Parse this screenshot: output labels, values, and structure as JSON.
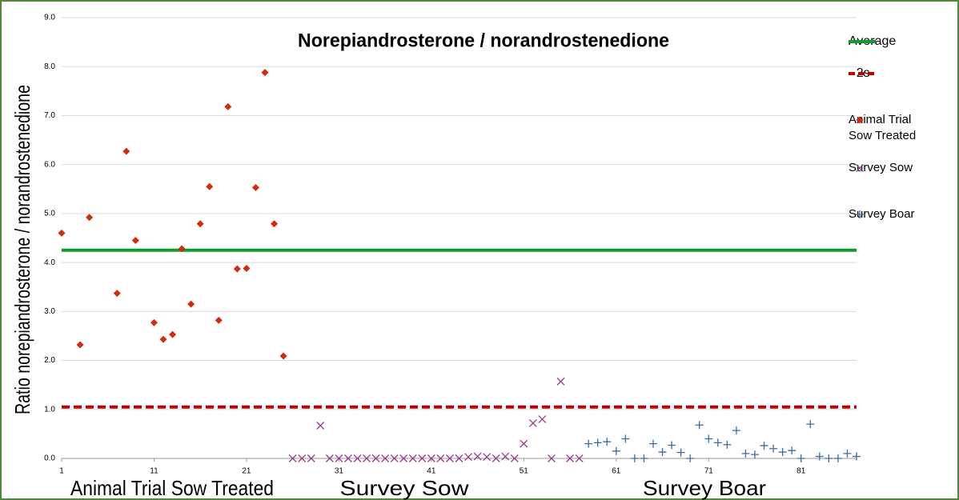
{
  "chart_data": {
    "type": "scatter",
    "title": "Norepiandrosterone / norandrostenedione",
    "y_label": "Ratio norepiandrosterone / norandrostenedione",
    "annotations": [
      "Animal Trial Sow Treated",
      "Survey Sow",
      "Survey Boar"
    ],
    "xlim": [
      1,
      87
    ],
    "xticks": [
      1,
      11,
      21,
      31,
      41,
      51,
      61,
      71,
      81
    ],
    "ylim": [
      0,
      9
    ],
    "yticks": [
      {
        "value": 0,
        "label": "0.0"
      },
      {
        "value": 1,
        "label": "1.0"
      },
      {
        "value": 2,
        "label": "2.0"
      },
      {
        "value": 3,
        "label": "3.0"
      },
      {
        "value": 4,
        "label": "4.0"
      },
      {
        "value": 5,
        "label": "5.0"
      },
      {
        "value": 6,
        "label": "6.0"
      },
      {
        "value": 7,
        "label": "7.0"
      },
      {
        "value": 8,
        "label": "8.0"
      },
      {
        "value": 9,
        "label": "9.0"
      }
    ],
    "grid": true,
    "reference_lines": [
      {
        "name": "Average",
        "value": 4.25,
        "color": "#119a2e",
        "style": "solid"
      },
      {
        "name": "- 2s",
        "value": 1.05,
        "color": "#c00000",
        "style": "dashed"
      }
    ],
    "series": [
      {
        "name": "Animal Trial Sow Treated",
        "marker": "diamond",
        "color": "#d42a0e",
        "x": [
          1,
          3,
          4,
          7,
          8,
          9,
          11,
          12,
          13,
          14,
          15,
          16,
          17,
          18,
          19,
          20,
          21,
          22,
          23,
          24,
          25
        ],
        "values": [
          4.6,
          2.32,
          4.92,
          3.37,
          6.27,
          4.45,
          2.77,
          2.43,
          2.53,
          4.28,
          3.15,
          4.79,
          5.55,
          2.82,
          7.18,
          3.87,
          3.88,
          5.53,
          7.88,
          4.79,
          2.09
        ]
      },
      {
        "name": "Survey Sow",
        "marker": "x",
        "color": "#9a3c8e",
        "x": [
          26,
          27,
          28,
          29,
          30,
          31,
          32,
          33,
          34,
          35,
          36,
          37,
          38,
          39,
          40,
          41,
          42,
          43,
          44,
          45,
          46,
          47,
          48,
          49,
          50,
          51,
          52,
          53,
          54,
          55,
          56,
          57
        ],
        "values": [
          0,
          0,
          0,
          0.67,
          0,
          0,
          0,
          0,
          0,
          0,
          0,
          0,
          0,
          0,
          0,
          0,
          0,
          0,
          0,
          0.03,
          0.04,
          0.03,
          0,
          0.04,
          0,
          0.3,
          0.72,
          0.8,
          0,
          1.57,
          0,
          0
        ]
      },
      {
        "name": "Survey Boar",
        "marker": "plus",
        "color": "#3a6ea5",
        "x": [
          58,
          59,
          60,
          61,
          62,
          63,
          64,
          65,
          66,
          67,
          68,
          69,
          70,
          71,
          72,
          73,
          74,
          75,
          76,
          77,
          78,
          79,
          80,
          81,
          82,
          83,
          84,
          85,
          86,
          87
        ],
        "values": [
          0.3,
          0.32,
          0.34,
          0.15,
          0.4,
          0,
          0,
          0.3,
          0.13,
          0.27,
          0.12,
          0,
          0.68,
          0.4,
          0.32,
          0.28,
          0.57,
          0.1,
          0.08,
          0.26,
          0.2,
          0.13,
          0.16,
          0,
          0.7,
          0.04,
          0,
          0,
          0.1,
          0.04
        ]
      }
    ]
  }
}
